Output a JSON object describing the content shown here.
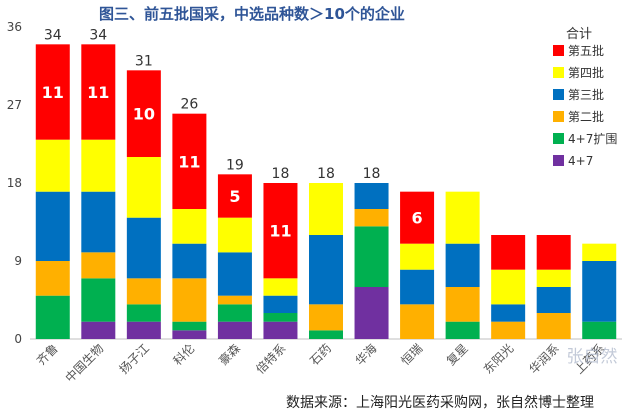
{
  "chart_data": {
    "type": "bar",
    "stacked": true,
    "title": "图三、前五批国采，中选品种数＞10个的企业",
    "categories": [
      "齐鲁",
      "中国生物",
      "扬子江",
      "科伦",
      "豪森",
      "倍特系",
      "石药",
      "华海",
      "恒瑞",
      "复星",
      "东阳光",
      "华润系",
      "上药系"
    ],
    "totals": [
      34,
      34,
      31,
      26,
      19,
      18,
      18,
      18,
      null,
      null,
      null,
      null,
      null
    ],
    "ylim": [
      0,
      36
    ],
    "yticks": [
      0,
      9,
      18,
      27,
      36
    ],
    "legend_title": "合计",
    "legend_position": "right",
    "grid": false,
    "series": [
      {
        "name": "4+7",
        "color": "#7030a0",
        "values": [
          0,
          2,
          2,
          1,
          2,
          2,
          0,
          6,
          0,
          0,
          0,
          0,
          0
        ]
      },
      {
        "name": "4+7扩围",
        "color": "#00b050",
        "values": [
          5,
          5,
          2,
          1,
          2,
          1,
          1,
          7,
          0,
          2,
          0,
          0,
          2
        ]
      },
      {
        "name": "第二批",
        "color": "#ffb000",
        "values": [
          4,
          3,
          3,
          5,
          1,
          0,
          3,
          2,
          4,
          4,
          2,
          3,
          0
        ]
      },
      {
        "name": "第三批",
        "color": "#0070c0",
        "values": [
          8,
          7,
          7,
          4,
          5,
          2,
          8,
          3,
          4,
          5,
          2,
          3,
          7
        ]
      },
      {
        "name": "第四批",
        "color": "#ffff00",
        "values": [
          6,
          6,
          7,
          4,
          4,
          2,
          6,
          0,
          3,
          6,
          4,
          2,
          2
        ]
      },
      {
        "name": "第五批",
        "color": "#ff0000",
        "values": [
          11,
          11,
          10,
          11,
          5,
          11,
          0,
          0,
          6,
          0,
          4,
          4,
          0
        ]
      }
    ],
    "segment_labels": [
      {
        "category": 0,
        "series": "第五批",
        "text": "11"
      },
      {
        "category": 1,
        "series": "第五批",
        "text": "11"
      },
      {
        "category": 2,
        "series": "第五批",
        "text": "10"
      },
      {
        "category": 3,
        "series": "第五批",
        "text": "11"
      },
      {
        "category": 4,
        "series": "第五批",
        "text": "5"
      },
      {
        "category": 5,
        "series": "第五批",
        "text": "11"
      },
      {
        "category": 8,
        "series": "第五批",
        "text": "6"
      }
    ],
    "source": "数据来源：上海阳光医药采购网，张自然博士整理",
    "watermark": "张自然"
  }
}
